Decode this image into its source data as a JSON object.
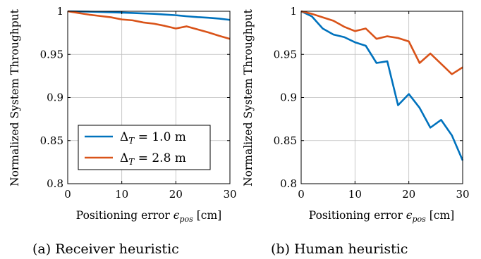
{
  "chart_data": [
    {
      "type": "line",
      "caption": "(a) Receiver heuristic",
      "xlabel": "Positioning error ϵpos [cm]",
      "ylabel": "Normalized System Throughput",
      "xlim": [
        0,
        30
      ],
      "ylim": [
        0.8,
        1.0
      ],
      "xticks": [
        "0",
        "10",
        "20",
        "30"
      ],
      "yticks": [
        "0.8",
        "0.85",
        "0.9",
        "0.95",
        "1"
      ],
      "grid": true,
      "legend": {
        "position": "bottom-left"
      },
      "series": [
        {
          "name": "ΔT = 1.0 m",
          "color": "#0072bd",
          "x": [
            0,
            2,
            4,
            6,
            8,
            10,
            12,
            14,
            16,
            18,
            20,
            22,
            24,
            26,
            28,
            30
          ],
          "y": [
            1.0,
            0.9998,
            0.9995,
            0.9992,
            0.9988,
            0.9984,
            0.998,
            0.9975,
            0.997,
            0.9962,
            0.9954,
            0.9942,
            0.9932,
            0.9925,
            0.9915,
            0.99
          ]
        },
        {
          "name": "ΔT = 2.8 m",
          "color": "#d95319",
          "x": [
            0,
            2,
            4,
            6,
            8,
            10,
            12,
            14,
            16,
            18,
            20,
            22,
            24,
            26,
            28,
            30
          ],
          "y": [
            1.0,
            0.998,
            0.996,
            0.9945,
            0.993,
            0.9905,
            0.9895,
            0.987,
            0.9855,
            0.983,
            0.98,
            0.9825,
            0.979,
            0.9755,
            0.9715,
            0.968
          ]
        }
      ]
    },
    {
      "type": "line",
      "caption": "(b) Human heuristic",
      "xlabel": "Positioning error ϵpos [cm]",
      "ylabel": "Normalized System Throughput",
      "xlim": [
        0,
        30
      ],
      "ylim": [
        0.8,
        1.0
      ],
      "xticks": [
        "0",
        "10",
        "20",
        "30"
      ],
      "yticks": [
        "0.8",
        "0.85",
        "0.9",
        "0.95",
        "1"
      ],
      "grid": true,
      "series": [
        {
          "name": "ΔT = 1.0 m",
          "color": "#0072bd",
          "x": [
            0,
            2,
            4,
            6,
            8,
            10,
            12,
            14,
            16,
            18,
            20,
            22,
            24,
            26,
            28,
            30
          ],
          "y": [
            1.0,
            0.994,
            0.98,
            0.973,
            0.97,
            0.964,
            0.96,
            0.94,
            0.942,
            0.891,
            0.904,
            0.888,
            0.865,
            0.874,
            0.856,
            0.827
          ]
        },
        {
          "name": "ΔT = 2.8 m",
          "color": "#d95319",
          "x": [
            0,
            2,
            4,
            6,
            8,
            10,
            12,
            14,
            16,
            18,
            20,
            22,
            24,
            26,
            28,
            30
          ],
          "y": [
            1.0,
            0.997,
            0.993,
            0.989,
            0.982,
            0.977,
            0.98,
            0.968,
            0.971,
            0.969,
            0.965,
            0.94,
            0.951,
            0.939,
            0.927,
            0.935
          ]
        }
      ]
    }
  ]
}
